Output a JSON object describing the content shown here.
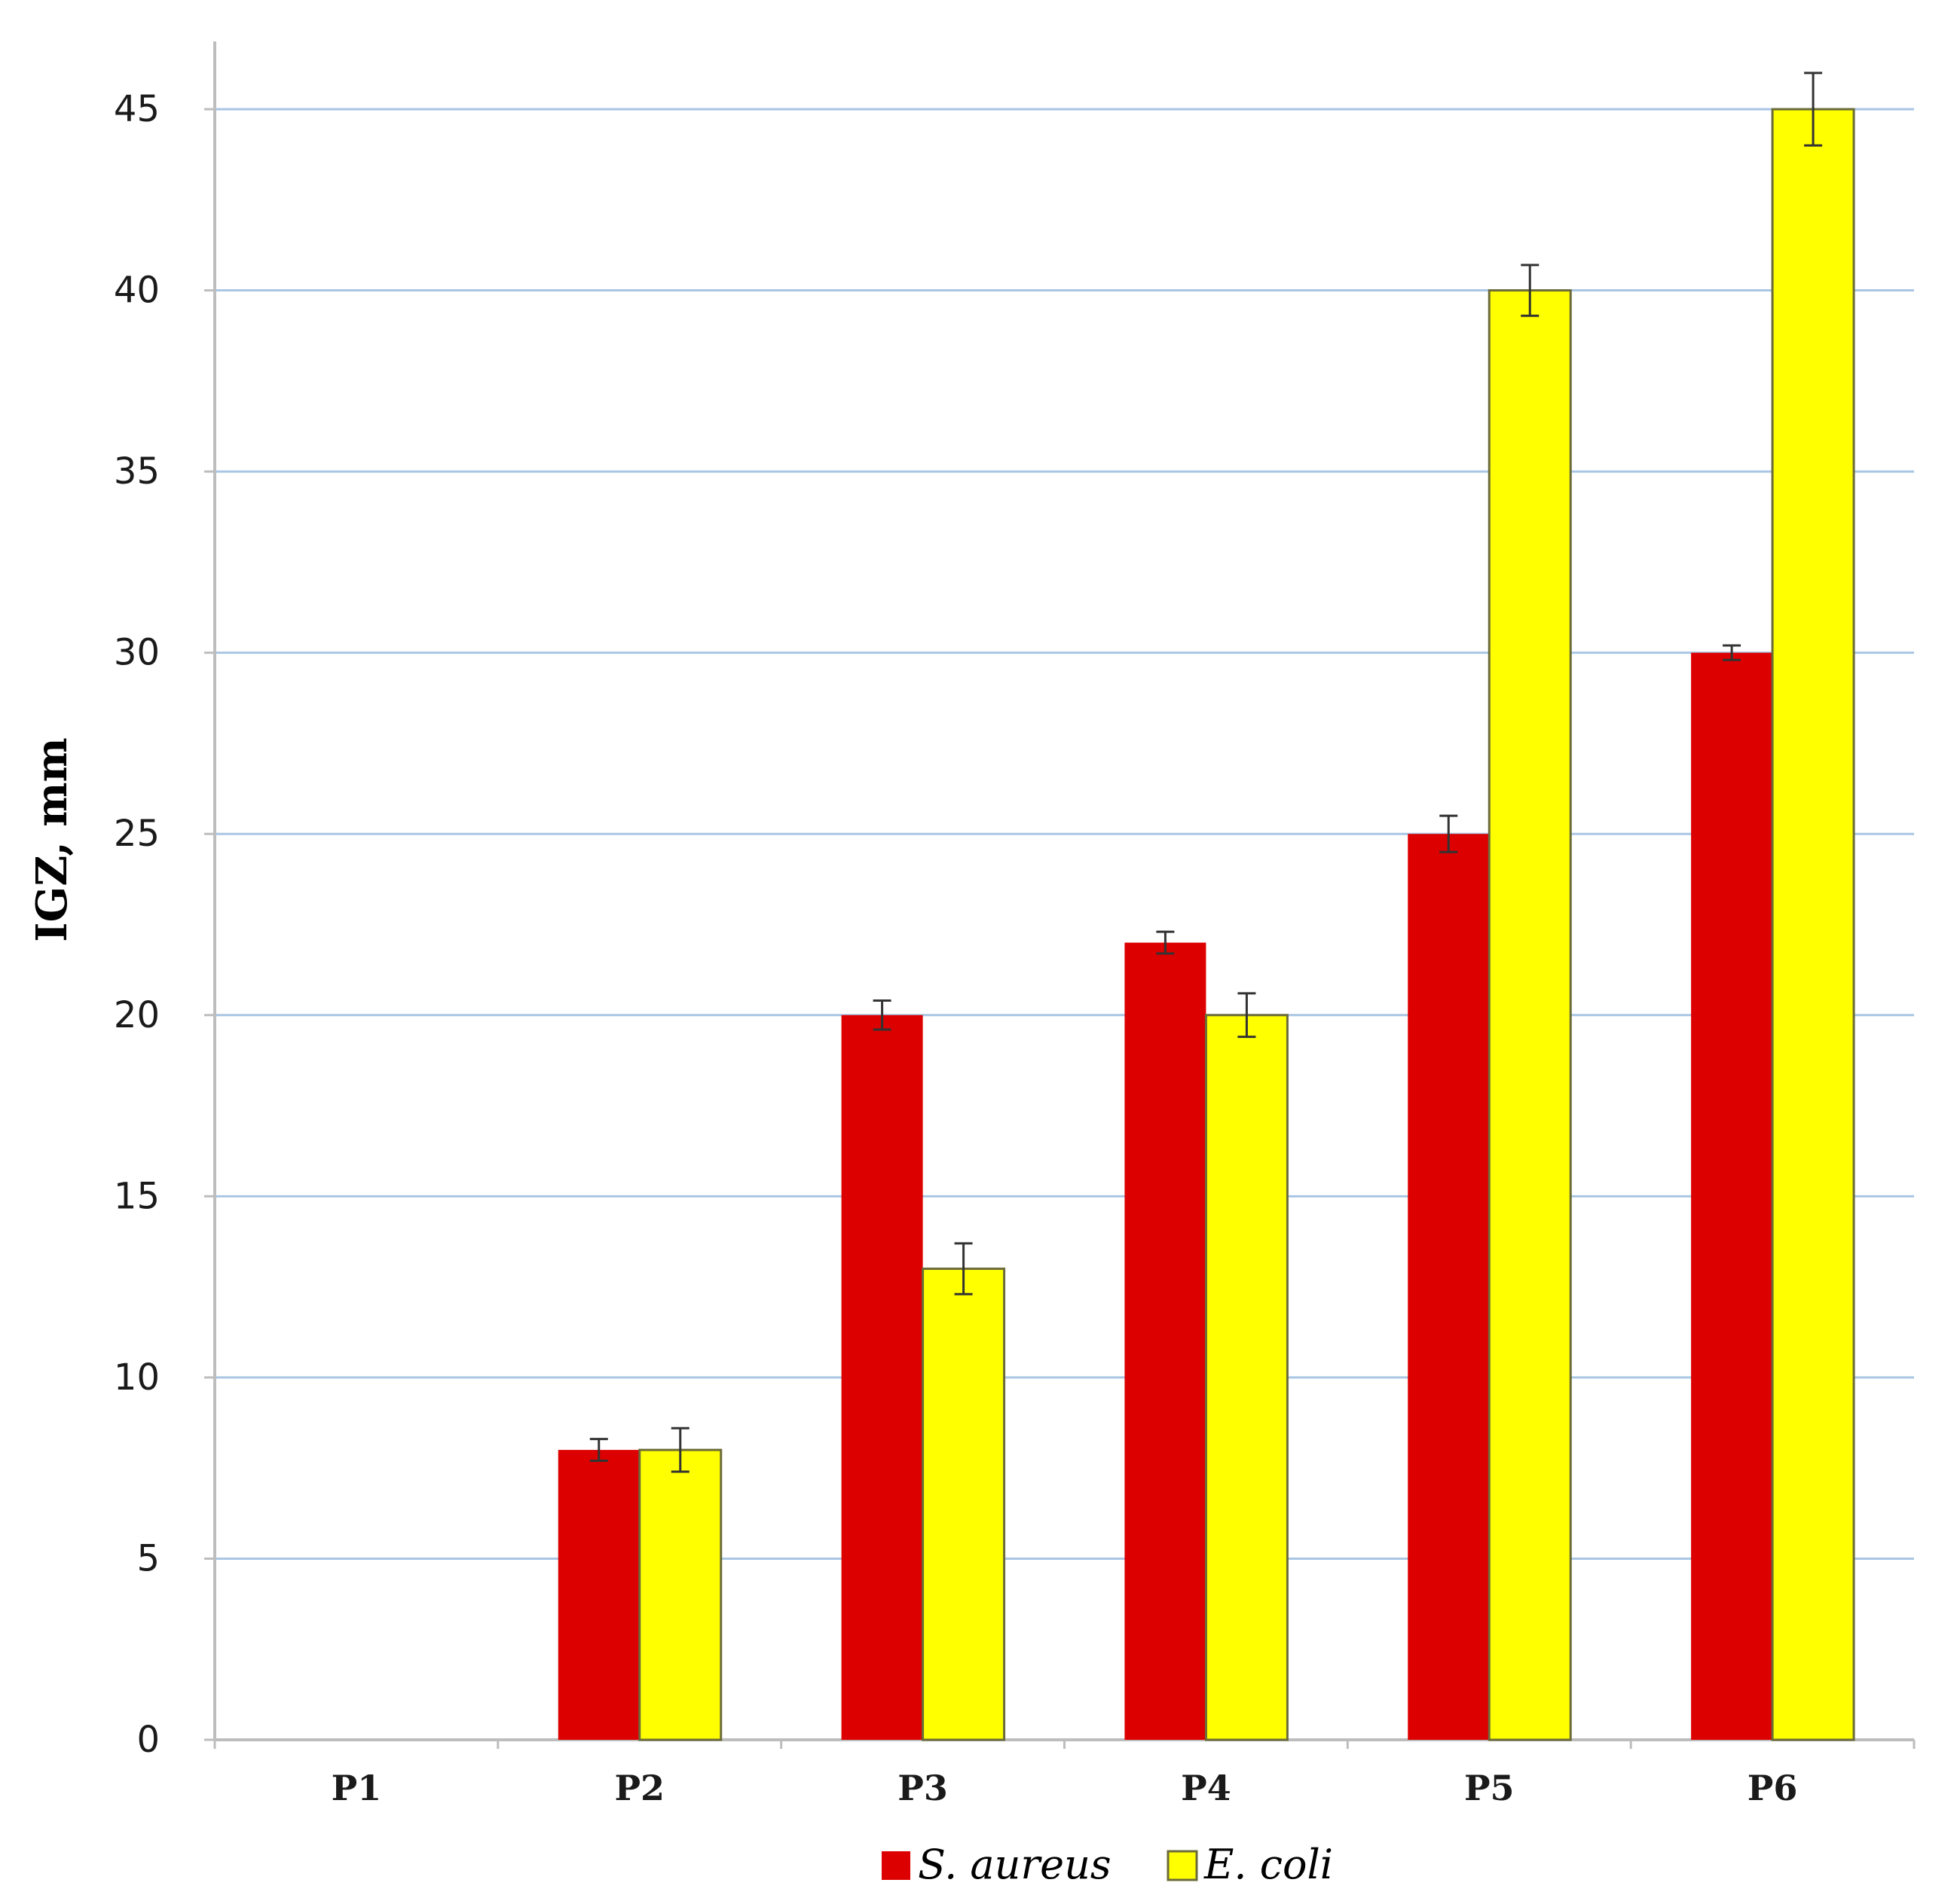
{
  "chart_data": {
    "type": "bar",
    "categories": [
      "P1",
      "P2",
      "P3",
      "P4",
      "P5",
      "P6"
    ],
    "series": [
      {
        "name": "S. aureus",
        "color": "#dd0000",
        "values": [
          0,
          8,
          20,
          22,
          25,
          30
        ],
        "errors": [
          0,
          0.3,
          0.4,
          0.3,
          0.5,
          0.2
        ]
      },
      {
        "name": "E. coli",
        "color": "#ffff00",
        "values": [
          0,
          8,
          13,
          20,
          40,
          45
        ],
        "errors": [
          0,
          0.6,
          0.7,
          0.6,
          0.7,
          1.0
        ]
      }
    ],
    "ylabel": "IGZ, mm",
    "xlabel": "",
    "ylim": [
      0,
      45
    ],
    "yticks": [
      0,
      5,
      10,
      15,
      20,
      25,
      30,
      35,
      40,
      45
    ],
    "grid": true,
    "legend": "bottom"
  }
}
